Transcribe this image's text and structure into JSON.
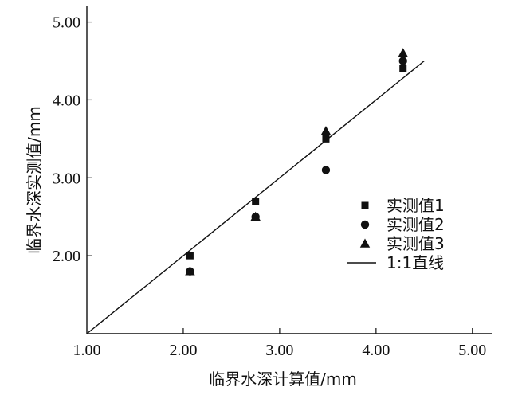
{
  "chart_data": {
    "type": "scatter",
    "title": "",
    "xlabel": "临界水深计算值/mm",
    "ylabel": "临界水深实测值/mm",
    "xlim": [
      1.0,
      5.2
    ],
    "ylim": [
      1.0,
      5.2
    ],
    "x_ticks": [
      1.0,
      2.0,
      3.0,
      4.0,
      5.0
    ],
    "y_ticks": [
      1.0,
      2.0,
      3.0,
      4.0,
      5.0
    ],
    "x_tick_labels": [
      "1.00",
      "2.00",
      "3.00",
      "4.00",
      "5.00"
    ],
    "y_tick_labels": [
      "1.00",
      "2.00",
      "3.00",
      "4.00",
      "5.00"
    ],
    "grid": false,
    "legend_position": "right",
    "series": [
      {
        "name": "实测值1",
        "marker": "square",
        "color": "#111111",
        "x": [
          2.07,
          2.75,
          3.48,
          4.28
        ],
        "y": [
          2.0,
          2.7,
          3.5,
          4.4
        ]
      },
      {
        "name": "实测值2",
        "marker": "circle",
        "color": "#111111",
        "x": [
          2.07,
          2.75,
          3.48,
          4.28
        ],
        "y": [
          1.8,
          2.5,
          3.1,
          4.5
        ]
      },
      {
        "name": "实测值3",
        "marker": "triangle",
        "color": "#111111",
        "x": [
          2.07,
          2.75,
          3.48,
          4.28
        ],
        "y": [
          1.8,
          2.5,
          3.6,
          4.6
        ]
      },
      {
        "name": "1:1直线",
        "marker": "line",
        "color": "#111111",
        "x": [
          1.0,
          4.5
        ],
        "y": [
          1.0,
          4.5
        ]
      }
    ]
  }
}
